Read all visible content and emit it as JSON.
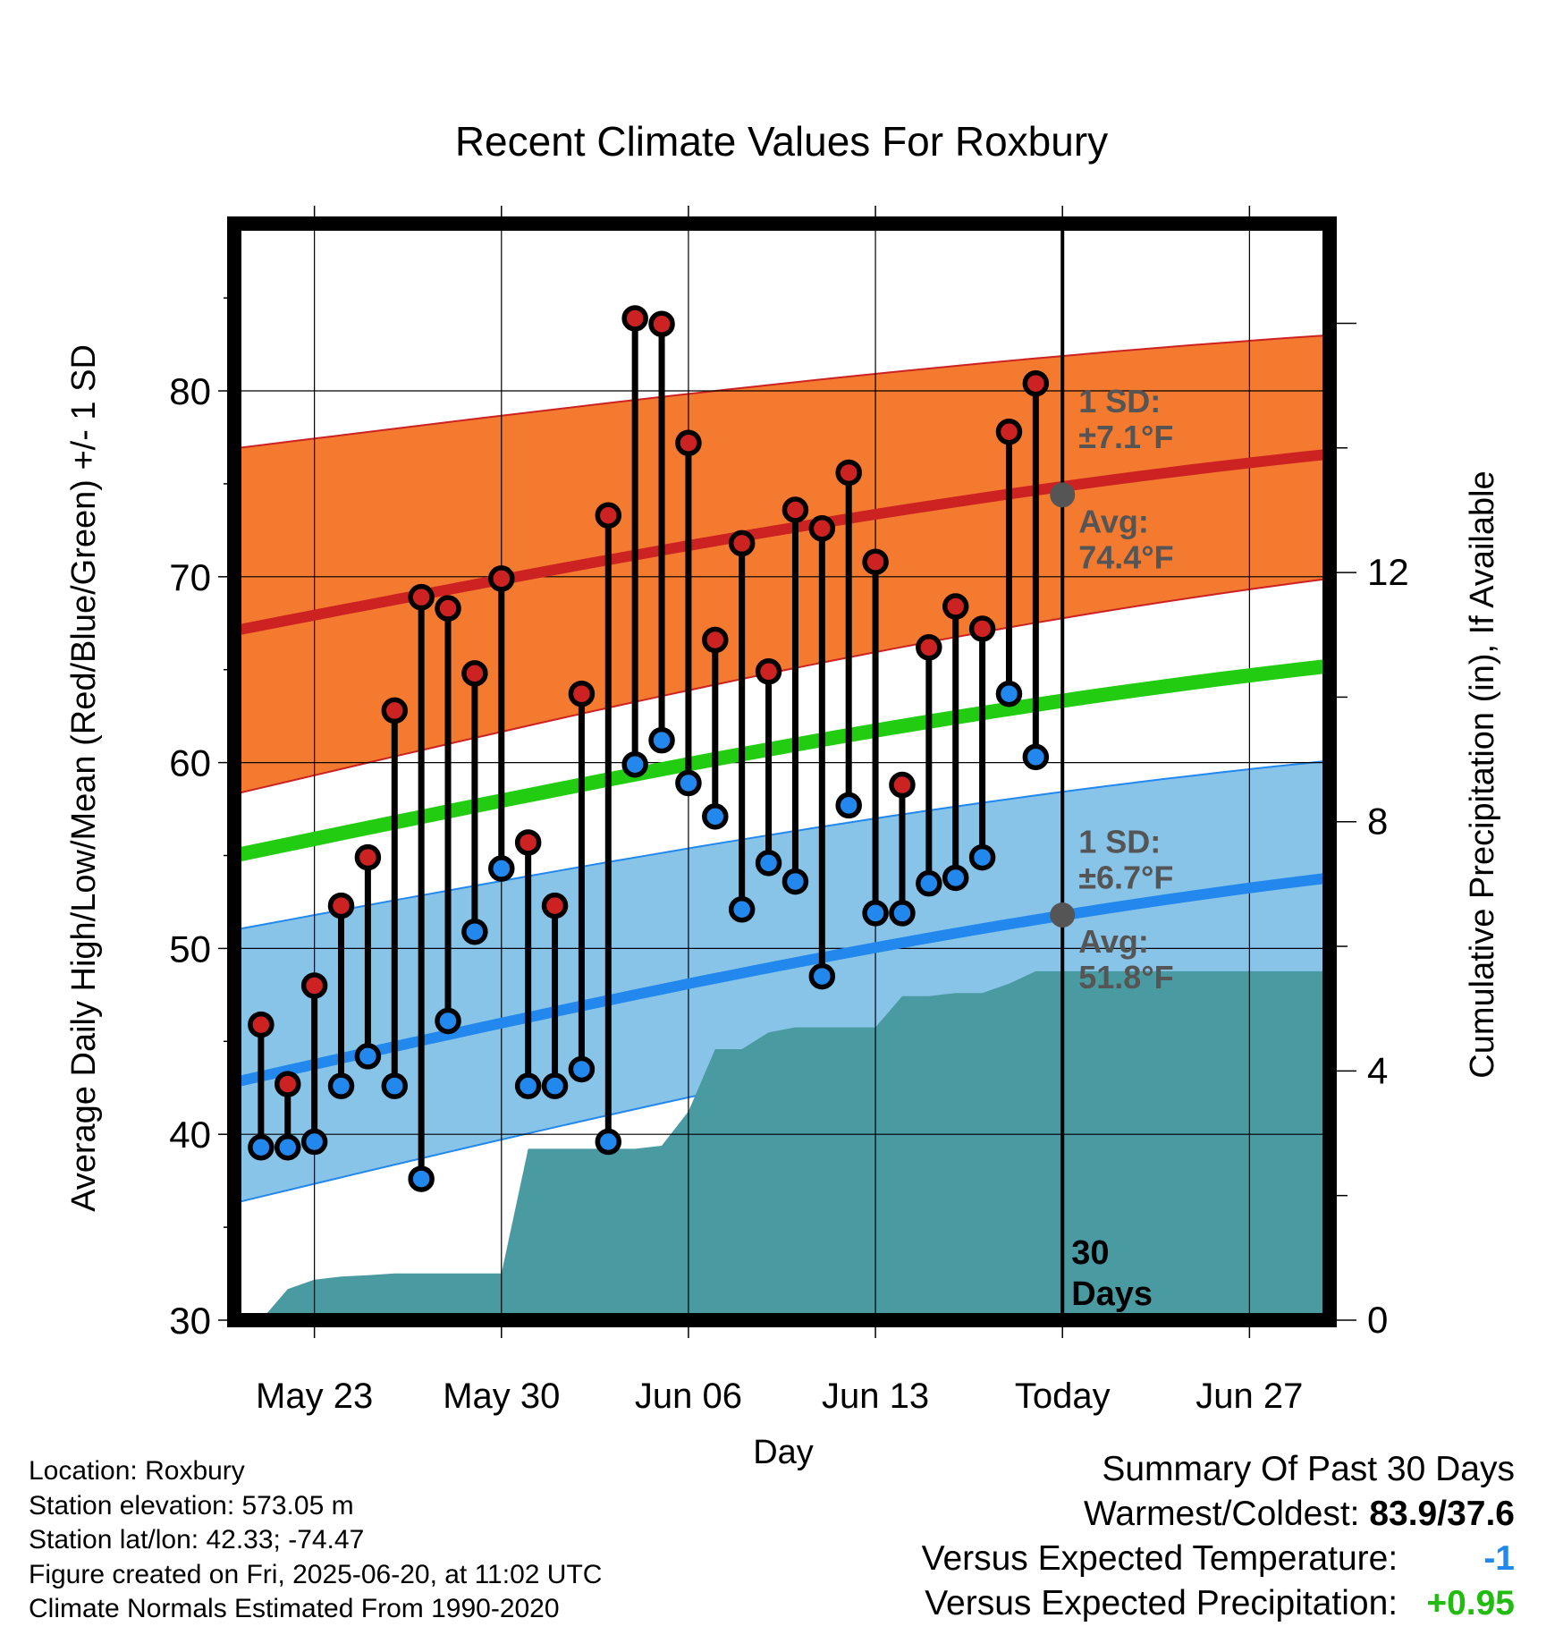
{
  "chart_data": {
    "type": "line",
    "title": "Recent Climate Values For Roxbury",
    "xlabel": "Day",
    "ylabel_left": "Average Daily High/Low/Mean (Red/Blue/Green) +/- 1 SD",
    "ylabel_right": "Cumulative Precipitation (in), If Available",
    "x_tick_labels": [
      "May 23",
      "May 30",
      "Jun 06",
      "Jun 13",
      "Today",
      "Jun 27"
    ],
    "x_tick_days": [
      3,
      10,
      17,
      24,
      31,
      38
    ],
    "x_range_days": [
      0,
      41
    ],
    "ylim_left": [
      30,
      89
    ],
    "y_ticks_left": [
      "30",
      "40",
      "50",
      "60",
      "70",
      "80"
    ],
    "ylim_right": [
      0,
      17.6
    ],
    "y_ticks_right": [
      "0",
      "4",
      "8",
      "12"
    ],
    "today_day": 31,
    "today_label": "30\nDays",
    "grid": true,
    "days": [
      1,
      2,
      3,
      4,
      5,
      6,
      7,
      8,
      9,
      10,
      11,
      12,
      13,
      14,
      15,
      16,
      17,
      18,
      19,
      20,
      21,
      22,
      23,
      24,
      25,
      26,
      27,
      28,
      29,
      30
    ],
    "series": [
      {
        "name": "High",
        "color": "#cc2222",
        "values": [
          45.9,
          42.7,
          48.0,
          52.3,
          54.9,
          62.8,
          68.9,
          68.3,
          64.8,
          69.9,
          55.7,
          52.3,
          63.7,
          73.3,
          83.9,
          83.6,
          77.2,
          66.6,
          71.8,
          64.9,
          73.6,
          72.6,
          75.6,
          70.8,
          58.8,
          66.2,
          68.4,
          67.2,
          77.8,
          80.4
        ]
      },
      {
        "name": "Low",
        "color": "#2288ee",
        "values": [
          39.3,
          39.3,
          39.6,
          42.6,
          44.2,
          42.6,
          37.6,
          46.1,
          50.9,
          54.3,
          42.6,
          42.6,
          43.5,
          39.6,
          59.9,
          61.2,
          58.9,
          57.1,
          52.1,
          54.6,
          53.6,
          48.5,
          57.7,
          51.9,
          51.9,
          53.5,
          53.8,
          54.9,
          63.7,
          60.3
        ]
      }
    ],
    "precip_days": [
      0,
      1,
      2,
      3,
      4,
      5,
      6,
      7,
      8,
      9,
      10,
      11,
      12,
      13,
      14,
      15,
      16,
      17,
      18,
      19,
      20,
      21,
      22,
      23,
      24,
      25,
      26,
      27,
      28,
      29,
      30,
      31,
      32,
      33,
      34,
      35,
      36,
      37,
      38,
      39,
      40,
      41
    ],
    "precip_cumulative": [
      0,
      0,
      0.5,
      0.65,
      0.7,
      0.72,
      0.75,
      0.75,
      0.75,
      0.75,
      0.75,
      2.75,
      2.75,
      2.75,
      2.75,
      2.75,
      2.8,
      3.35,
      4.35,
      4.35,
      4.62,
      4.7,
      4.7,
      4.7,
      4.7,
      5.2,
      5.2,
      5.25,
      5.25,
      5.4,
      5.6,
      5.6,
      5.6,
      5.6,
      5.6,
      5.6,
      5.6,
      5.6,
      5.6,
      5.6,
      5.6,
      5.6
    ],
    "normals": {
      "high_mean": [
        67.1,
        76.6
      ],
      "high_band_low": [
        58.3,
        69.9
      ],
      "high_band_high": [
        76.9,
        83.0
      ],
      "mean": [
        55.0,
        65.2
      ],
      "low_mean": [
        42.8,
        53.8
      ],
      "low_band_low": [
        36.3,
        48.1
      ],
      "low_band_high": [
        51.0,
        60.1
      ]
    },
    "high_annotation": {
      "sd_label": "1 SD:",
      "sd_value": "±7.1°F",
      "avg_label": "Avg:",
      "avg_value": "74.4°F",
      "avg": 74.4
    },
    "low_annotation": {
      "sd_label": "1 SD:",
      "sd_value": "±6.7°F",
      "avg_label": "Avg:",
      "avg_value": "51.8°F",
      "avg": 51.8
    },
    "colors": {
      "high_band": "#f47a30",
      "high_line": "#cc2222",
      "mean_line": "#22cc11",
      "low_band": "#88c4e8",
      "low_line": "#2288ee",
      "precip": "#4a9aa2",
      "annotation_text": "#555555"
    }
  },
  "info": {
    "location": "Location: Roxbury",
    "elevation": "Station elevation: 573.05 m",
    "latlon": "Station lat/lon: 42.33; -74.47",
    "created": "Figure created on Fri, 2025-06-20, at 11:02 UTC",
    "normals": "Climate Normals Estimated From 1990-2020"
  },
  "summary": {
    "title": "Summary Of Past 30 Days",
    "warmest_label": "Warmest/Coldest:",
    "warmest_value": "83.9/37.6",
    "temp_label": "Versus Expected Temperature:",
    "temp_value": "-1",
    "temp_color": "#2288ee",
    "precip_label": "Versus Expected Precipitation:",
    "precip_value": "+0.95",
    "precip_color": "#22bb11"
  }
}
